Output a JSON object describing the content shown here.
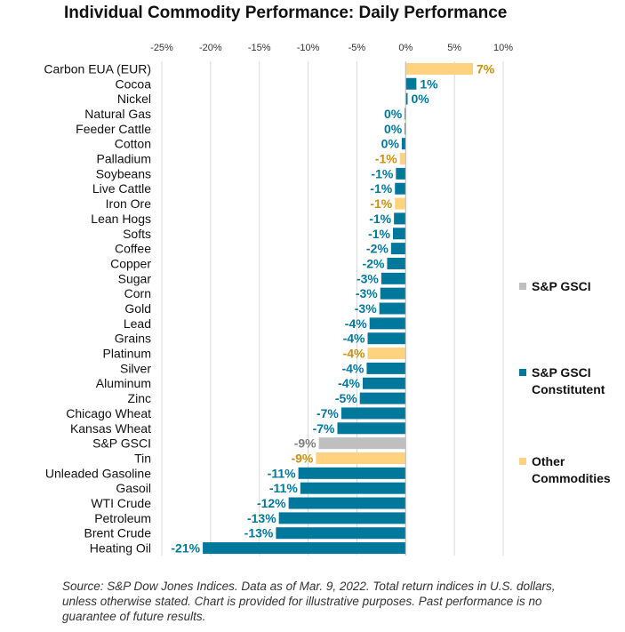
{
  "chart_data": {
    "type": "bar",
    "orientation": "horizontal",
    "title": "Individual Commodity Performance: Daily Performance",
    "xlim": [
      -25,
      10
    ],
    "xticks": [
      "-25%",
      "-20%",
      "-15%",
      "-10%",
      "-5%",
      "0%",
      "5%",
      "10%"
    ],
    "grid": "vertical",
    "legend_position": "right",
    "categories": [
      "Carbon EUA (EUR)",
      "Cocoa",
      "Nickel",
      "Natural Gas",
      "Feeder Cattle",
      "Cotton",
      "Palladium",
      "Soybeans",
      "Live Cattle",
      "Iron Ore",
      "Lean Hogs",
      "Softs",
      "Coffee",
      "Copper",
      "Sugar",
      "Corn",
      "Gold",
      "Lead",
      "Grains",
      "Platinum",
      "Silver",
      "Aluminum",
      "Zinc",
      "Chicago Wheat",
      "Kansas Wheat",
      "S&P GSCI",
      "Tin",
      "Unleaded Gasoline",
      "Gasoil",
      "WTI Crude",
      "Petroleum",
      "Brent Crude",
      "Heating Oil"
    ],
    "values": [
      6.9,
      1.1,
      0.2,
      -0.1,
      -0.1,
      -0.4,
      -0.6,
      -1.0,
      -1.1,
      -1.1,
      -1.2,
      -1.3,
      -1.5,
      -1.9,
      -2.5,
      -2.6,
      -2.7,
      -3.7,
      -3.9,
      -3.9,
      -4.0,
      -4.4,
      -4.7,
      -6.6,
      -7.0,
      -8.9,
      -9.2,
      -11.0,
      -10.8,
      -12.0,
      -13.0,
      -13.3,
      -20.8
    ],
    "labels": [
      "7%",
      "1%",
      "0%",
      "0%",
      "0%",
      "0%",
      "-1%",
      "-1%",
      "-1%",
      "-1%",
      "-1%",
      "-1%",
      "-2%",
      "-2%",
      "-3%",
      "-3%",
      "-3%",
      "-4%",
      "-4%",
      "-4%",
      "-4%",
      "-4%",
      "-5%",
      "-7%",
      "-7%",
      "-9%",
      "-9%",
      "-11%",
      "-11%",
      "-12%",
      "-13%",
      "-13%",
      "-21%"
    ],
    "groups": [
      "other",
      "constituent",
      "constituent",
      "constituent",
      "constituent",
      "constituent",
      "other",
      "constituent",
      "constituent",
      "other",
      "constituent",
      "constituent",
      "constituent",
      "constituent",
      "constituent",
      "constituent",
      "constituent",
      "constituent",
      "constituent",
      "other",
      "constituent",
      "constituent",
      "constituent",
      "constituent",
      "constituent",
      "index",
      "other",
      "constituent",
      "constituent",
      "constituent",
      "constituent",
      "constituent",
      "constituent"
    ],
    "legend": [
      {
        "group": "index",
        "label": "S&P GSCI"
      },
      {
        "group": "constituent",
        "label": "S&P GSCI Constitutent"
      },
      {
        "group": "other",
        "label": "Other Commodities"
      }
    ],
    "colors": {
      "index_bar": "#bfbfbf",
      "index_label": "#7f7f7f",
      "constituent_bar": "#00789c",
      "constituent_label": "#00789c",
      "other_bar": "#ffd280",
      "other_label": "#c9900f",
      "grid": "#d9d9d9"
    }
  },
  "source": "Source: S&P Dow Jones Indices. Data as of Mar. 9, 2022. Total return indices in U.S. dollars, unless otherwise stated.  Chart is provided for illustrative purposes. Past performance is no guarantee of future results."
}
